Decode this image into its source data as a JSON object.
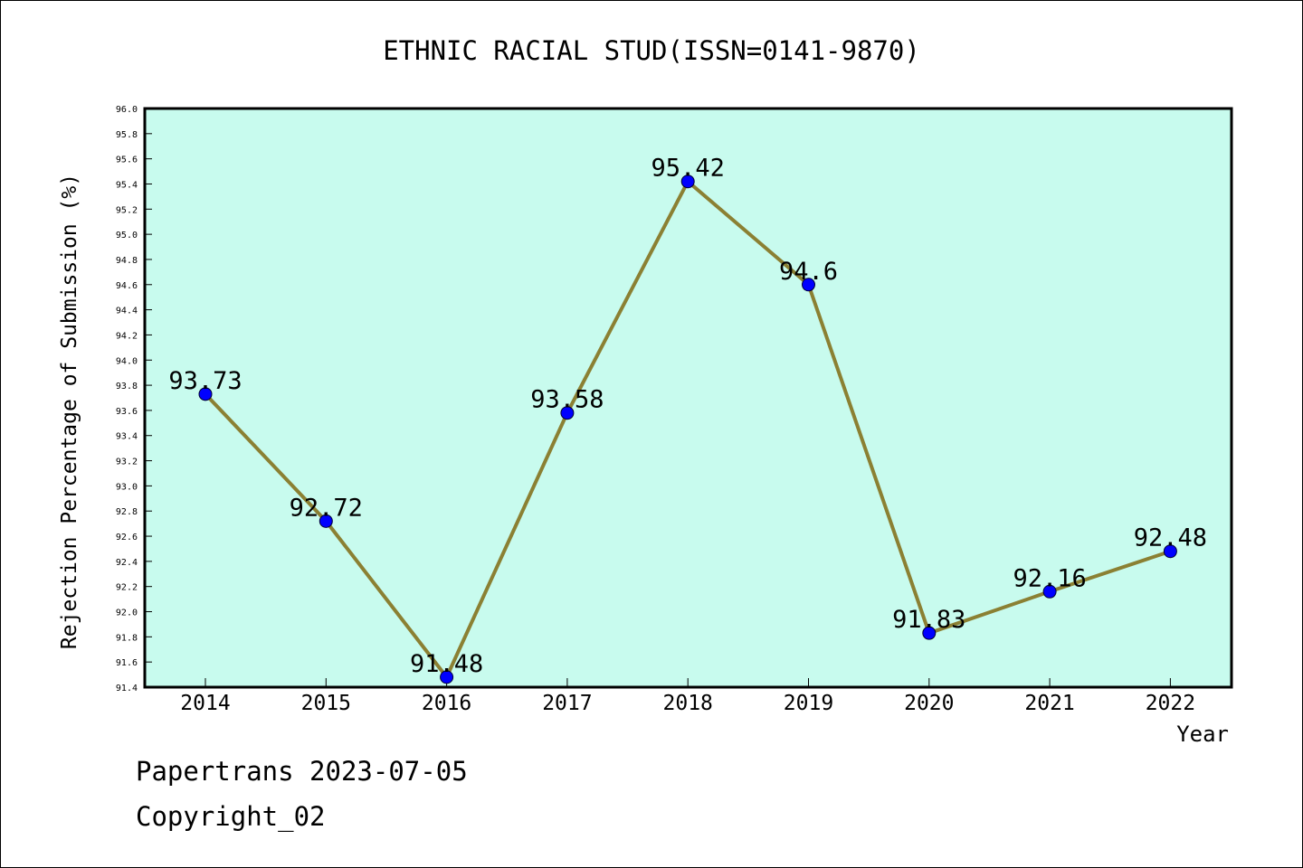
{
  "chart_data": {
    "type": "line",
    "title": "ETHNIC RACIAL STUD(ISSN=0141-9870)",
    "xlabel": "Year",
    "ylabel": "Rejection Percentage of Submission (%)",
    "categories": [
      "2014",
      "2015",
      "2016",
      "2017",
      "2018",
      "2019",
      "2020",
      "2021",
      "2022"
    ],
    "series": [
      {
        "values": [
          93.73,
          92.72,
          91.48,
          93.58,
          95.42,
          94.6,
          91.83,
          92.16,
          92.48
        ],
        "labels": [
          "93.73",
          "92.72",
          "91.48",
          "93.58",
          "95.42",
          "94.6",
          "91.83",
          "92.16",
          "92.48"
        ]
      }
    ],
    "ylim": [
      91.4,
      96.0
    ],
    "ytick_step": 0.2,
    "grid": false,
    "colors": {
      "plot_background": "#c8fbee",
      "line": "#8b8033",
      "marker": "#0000ff"
    }
  },
  "footer": {
    "date_text": "Papertrans 2023-07-05",
    "copyright_text": "Copyright_02"
  }
}
